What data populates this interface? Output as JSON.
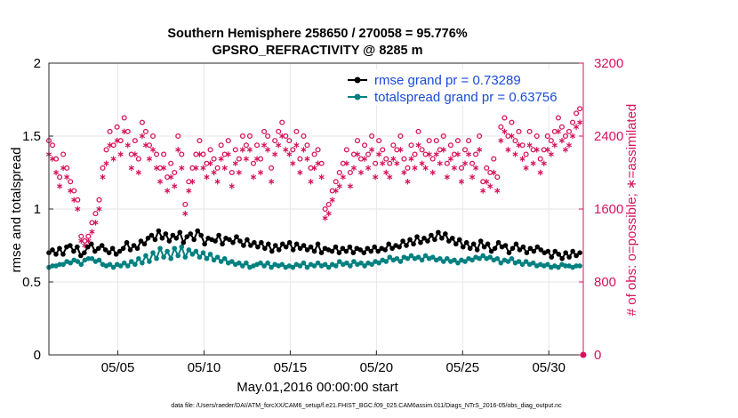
{
  "chart_data": {
    "type": "line",
    "title": "Southern Hemisphere 258650 / 270058 = 95.776%",
    "subtitle": "GPSRO_REFRACTIVITY @ 8285 m",
    "xlabel": "May.01,2016 00:00:00 start",
    "ylabel": "rmse and totalspread",
    "y2label": "# of obs: o=possible; ∗=assimilated",
    "ylim": [
      0,
      2
    ],
    "y2lim": [
      0,
      3200
    ],
    "xlim": [
      1,
      32
    ],
    "grid": true,
    "legend_position": "top-right",
    "yticks": [
      "0",
      "0.5",
      "1",
      "1.5",
      "2"
    ],
    "y2ticks": [
      "0",
      "800",
      "1600",
      "2400",
      "3200"
    ],
    "xticks": [
      {
        "label": "05/05",
        "value": 5
      },
      {
        "label": "05/10",
        "value": 10
      },
      {
        "label": "05/15",
        "value": 15
      },
      {
        "label": "05/20",
        "value": 20
      },
      {
        "label": "05/25",
        "value": 25
      },
      {
        "label": "05/30",
        "value": 30
      }
    ],
    "colors": {
      "rmse": "#000000",
      "totalspread": "#008080",
      "obs": "#d6135b",
      "legend_text": "#1a4bd6"
    },
    "series": [
      {
        "name": "rmse grand pr = 0.73289",
        "axis": "left",
        "values": [
          0.7,
          0.72,
          0.69,
          0.73,
          0.69,
          0.74,
          0.75,
          0.71,
          0.74,
          0.68,
          0.7,
          0.74,
          0.76,
          0.71,
          0.73,
          0.75,
          0.72,
          0.7,
          0.73,
          0.69,
          0.71,
          0.73,
          0.77,
          0.72,
          0.75,
          0.73,
          0.78,
          0.76,
          0.8,
          0.82,
          0.79,
          0.85,
          0.8,
          0.83,
          0.78,
          0.82,
          0.8,
          0.84,
          0.77,
          0.81,
          0.83,
          0.79,
          0.85,
          0.82,
          0.76,
          0.8,
          0.79,
          0.78,
          0.82,
          0.76,
          0.8,
          0.79,
          0.77,
          0.81,
          0.78,
          0.75,
          0.79,
          0.75,
          0.77,
          0.74,
          0.77,
          0.73,
          0.76,
          0.71,
          0.75,
          0.72,
          0.76,
          0.74,
          0.77,
          0.72,
          0.76,
          0.73,
          0.75,
          0.72,
          0.74,
          0.71,
          0.76,
          0.7,
          0.73,
          0.72,
          0.71,
          0.74,
          0.7,
          0.73,
          0.71,
          0.74,
          0.7,
          0.73,
          0.72,
          0.7,
          0.73,
          0.71,
          0.74,
          0.71,
          0.73,
          0.72,
          0.76,
          0.73,
          0.75,
          0.74,
          0.78,
          0.75,
          0.79,
          0.76,
          0.81,
          0.77,
          0.8,
          0.78,
          0.82,
          0.79,
          0.84,
          0.8,
          0.83,
          0.78,
          0.8,
          0.76,
          0.79,
          0.74,
          0.77,
          0.73,
          0.76,
          0.72,
          0.78,
          0.74,
          0.76,
          0.71,
          0.73,
          0.77,
          0.74,
          0.75,
          0.7,
          0.73,
          0.76,
          0.72,
          0.74,
          0.7,
          0.73,
          0.71,
          0.74,
          0.72,
          0.7,
          0.71,
          0.67,
          0.71,
          0.69,
          0.66,
          0.7,
          0.67,
          0.71,
          0.68,
          0.7
        ],
        "markers": "filled-circle"
      },
      {
        "name": "totalspread grand pr = 0.63756",
        "axis": "left",
        "values": [
          0.6,
          0.61,
          0.61,
          0.62,
          0.62,
          0.64,
          0.63,
          0.65,
          0.64,
          0.62,
          0.65,
          0.66,
          0.66,
          0.64,
          0.65,
          0.62,
          0.61,
          0.62,
          0.6,
          0.62,
          0.61,
          0.63,
          0.61,
          0.64,
          0.62,
          0.66,
          0.63,
          0.68,
          0.64,
          0.7,
          0.66,
          0.73,
          0.67,
          0.71,
          0.66,
          0.73,
          0.68,
          0.74,
          0.67,
          0.72,
          0.69,
          0.71,
          0.67,
          0.7,
          0.66,
          0.69,
          0.65,
          0.67,
          0.64,
          0.66,
          0.63,
          0.64,
          0.62,
          0.63,
          0.61,
          0.63,
          0.6,
          0.61,
          0.62,
          0.63,
          0.61,
          0.63,
          0.6,
          0.62,
          0.61,
          0.62,
          0.6,
          0.61,
          0.6,
          0.62,
          0.61,
          0.63,
          0.6,
          0.62,
          0.61,
          0.63,
          0.61,
          0.62,
          0.6,
          0.62,
          0.61,
          0.64,
          0.62,
          0.63,
          0.61,
          0.64,
          0.62,
          0.63,
          0.61,
          0.63,
          0.62,
          0.64,
          0.63,
          0.65,
          0.64,
          0.67,
          0.65,
          0.66,
          0.64,
          0.67,
          0.66,
          0.68,
          0.66,
          0.67,
          0.65,
          0.68,
          0.66,
          0.67,
          0.65,
          0.66,
          0.64,
          0.66,
          0.64,
          0.65,
          0.63,
          0.65,
          0.64,
          0.66,
          0.65,
          0.67,
          0.66,
          0.68,
          0.66,
          0.67,
          0.65,
          0.66,
          0.63,
          0.65,
          0.64,
          0.66,
          0.63,
          0.64,
          0.62,
          0.64,
          0.62,
          0.63,
          0.61,
          0.62,
          0.61,
          0.62,
          0.6,
          0.61,
          0.6,
          0.62,
          0.61,
          0.61,
          0.6,
          0.61,
          0.61
        ],
        "markers": "filled-circle"
      },
      {
        "name": "possible",
        "axis": "right",
        "values": [
          2350,
          2300,
          2150,
          1950,
          2200,
          2050,
          1900,
          1800,
          1700,
          1300,
          1250,
          1300,
          1450,
          1550,
          1700,
          2050,
          2250,
          2450,
          2300,
          2500,
          2350,
          2600,
          2450,
          2200,
          2350,
          2150,
          2550,
          2450,
          2300,
          2400,
          2200,
          2050,
          2200,
          1950,
          2100,
          2000,
          2400,
          2200,
          1650,
          1900,
          2050,
          2200,
          2350,
          2200,
          2100,
          2250,
          2150,
          2050,
          2300,
          2200,
          2350,
          2000,
          2250,
          2150,
          2400,
          2300,
          2400,
          2100,
          2300,
          2150,
          2450,
          2400,
          2050,
          2350,
          2450,
          2550,
          2400,
          2350,
          2250,
          2450,
          2150,
          2400,
          2300,
          2050,
          2200,
          2250,
          2100,
          1600,
          1650,
          1800,
          1900,
          2000,
          2100,
          2250,
          2000,
          2200,
          2350,
          2150,
          2300,
          2200,
          2400,
          2100,
          2350,
          2250,
          2150,
          2100,
          2300,
          2250,
          2400,
          2150,
          2050,
          2300,
          2200,
          2450,
          2250,
          2200,
          2350,
          2150,
          2350,
          2250,
          2400,
          2100,
          2300,
          2200,
          2350,
          2050,
          2250,
          2350,
          2100,
          2200,
          2400,
          1900,
          2050,
          2000,
          2150,
          1950,
          2500,
          2600,
          2400,
          2550,
          2350,
          2450,
          2300,
          2200,
          2450,
          2250,
          2400,
          2150,
          2250,
          2400,
          2350,
          2450,
          2600,
          2500,
          2400,
          2450,
          2550,
          2650,
          2700
        ],
        "markers": "open-circle"
      },
      {
        "name": "assimilated",
        "axis": "right",
        "values": [
          2200,
          2150,
          2000,
          1850,
          2050,
          1950,
          1800,
          1700,
          1600,
          1250,
          1200,
          1250,
          1350,
          1450,
          1600,
          1950,
          2100,
          2300,
          2150,
          2350,
          2200,
          2450,
          2300,
          2050,
          2200,
          2000,
          2400,
          2300,
          2150,
          2250,
          2050,
          1900,
          2050,
          1800,
          1950,
          1850,
          2250,
          2050,
          1550,
          1800,
          1900,
          2050,
          2200,
          2050,
          1950,
          2100,
          2000,
          1900,
          2150,
          2050,
          2200,
          1850,
          2100,
          2000,
          2250,
          2150,
          2250,
          1950,
          2150,
          2000,
          2300,
          2250,
          1900,
          2200,
          2300,
          2400,
          2250,
          2200,
          2100,
          2300,
          2000,
          2250,
          2150,
          1900,
          2050,
          2100,
          1950,
          1500,
          1550,
          1700,
          1800,
          1850,
          1950,
          2100,
          1850,
          2050,
          2200,
          2000,
          2150,
          2050,
          2250,
          1950,
          2200,
          2100,
          2000,
          1950,
          2150,
          2100,
          2250,
          2000,
          1900,
          2150,
          2050,
          2300,
          2100,
          2050,
          2200,
          2000,
          2200,
          2100,
          2250,
          1950,
          2150,
          2050,
          2200,
          1900,
          2100,
          2200,
          1950,
          2050,
          2250,
          1800,
          1900,
          1850,
          2000,
          1800,
          2350,
          2450,
          2250,
          2400,
          2200,
          2300,
          2150,
          2050,
          2300,
          2100,
          2250,
          2000,
          2100,
          2250,
          2200,
          2300,
          2450,
          2350,
          2250,
          2300,
          2400,
          2500,
          2550
        ],
        "markers": "asterisk"
      }
    ]
  },
  "footer": {
    "datafile": "data file: /Users/raeder/DAI/ATM_forcXX/CAM6_setup/f.e21.FHIST_BGC.f09_025.CAM6assim.011/Diags_NTrS_2016-05/obs_diag_output.nc"
  }
}
